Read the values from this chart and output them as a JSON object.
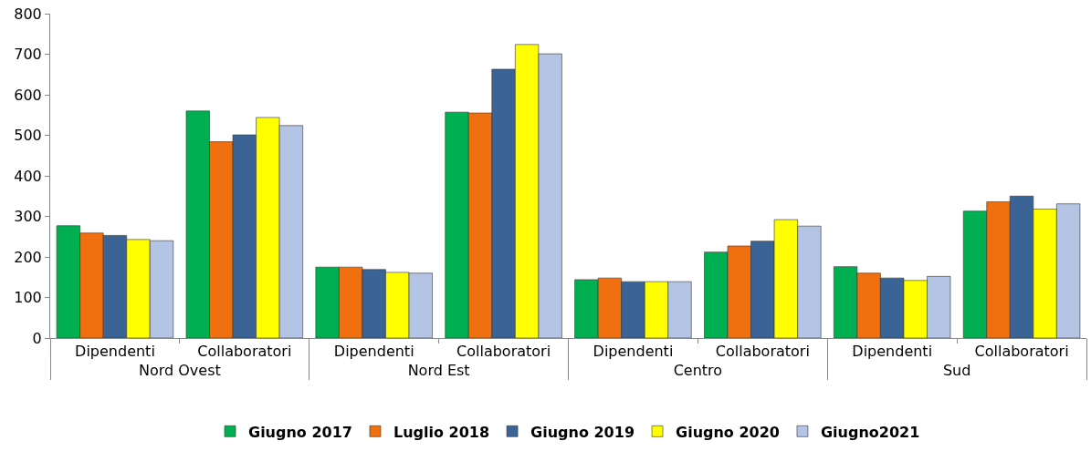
{
  "chart_data": {
    "type": "bar",
    "categories": [
      "Dipendenti",
      "Collaboratori",
      "Dipendenti",
      "Collaboratori",
      "Dipendenti",
      "Collaboratori",
      "Dipendenti",
      "Collaboratori"
    ],
    "annotations": [
      "Nord Ovest",
      "Nord Est",
      "Centro",
      "Sud"
    ],
    "series": [
      {
        "name": "Giugno 2017",
        "color": "#00b050",
        "values": [
          277,
          560,
          175,
          557,
          144,
          212,
          176,
          313
        ]
      },
      {
        "name": "Luglio 2018",
        "color": "#f07010",
        "values": [
          259,
          484,
          175,
          555,
          148,
          227,
          160,
          336
        ]
      },
      {
        "name": "Giugno 2019",
        "color": "#3a6496",
        "values": [
          253,
          501,
          169,
          663,
          139,
          239,
          148,
          350
        ]
      },
      {
        "name": "Giugno 2020",
        "color": "#ffff00",
        "values": [
          243,
          544,
          162,
          724,
          139,
          292,
          142,
          318
        ]
      },
      {
        "name": "Giugno2021",
        "color": "#b4c4e4",
        "values": [
          240,
          524,
          160,
          701,
          139,
          276,
          152,
          331
        ]
      }
    ],
    "ylim": [
      0,
      800
    ],
    "yticks": [
      0,
      100,
      200,
      300,
      400,
      500,
      600,
      700,
      800
    ],
    "legend": "bottom"
  }
}
